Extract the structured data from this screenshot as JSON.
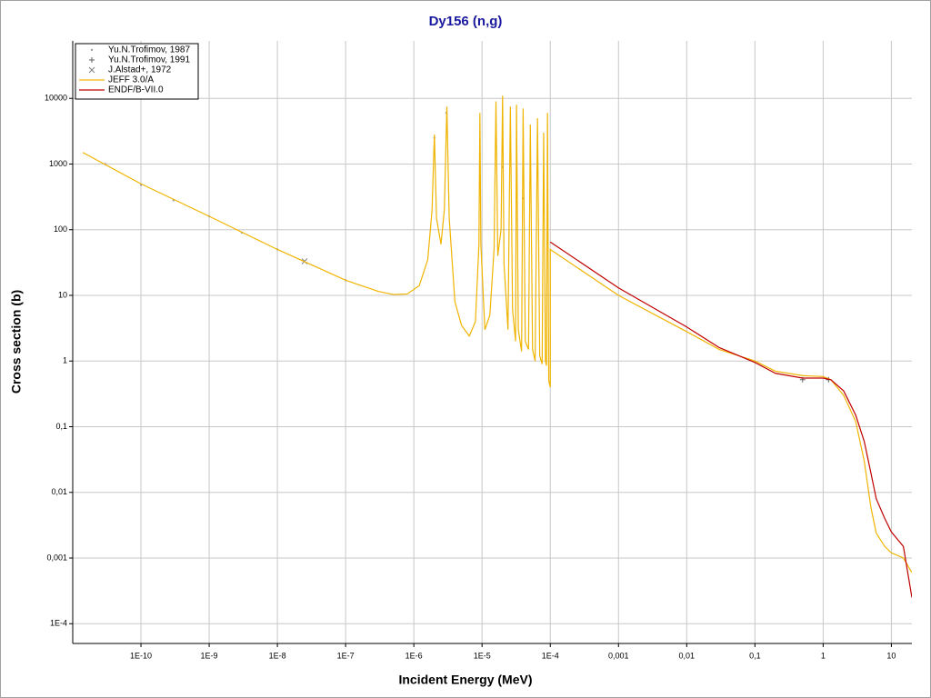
{
  "chart_data": {
    "type": "line",
    "title": "Dy156 (n,g)",
    "x_label": "Incident Energy (MeV)",
    "y_label": "Cross section (b)",
    "x_log": true,
    "y_log": true,
    "grid": true,
    "legend": "top-left",
    "xlim": [
      1e-11,
      20
    ],
    "ylim": [
      5e-05,
      75000
    ],
    "xticks": [
      {
        "value": 1e-10,
        "label": "1E-10"
      },
      {
        "value": 1e-09,
        "label": "1E-9"
      },
      {
        "value": 1e-08,
        "label": "1E-8"
      },
      {
        "value": 1e-07,
        "label": "1E-7"
      },
      {
        "value": 1e-06,
        "label": "1E-6"
      },
      {
        "value": 1e-05,
        "label": "1E-5"
      },
      {
        "value": 0.0001,
        "label": "1E-4"
      },
      {
        "value": 0.001,
        "label": "0,001"
      },
      {
        "value": 0.01,
        "label": "0,01"
      },
      {
        "value": 0.1,
        "label": "0,1"
      },
      1,
      10
    ],
    "yticks": [
      {
        "value": 0.0001,
        "label": "1E-4"
      },
      {
        "value": 0.001,
        "label": "0,001"
      },
      {
        "value": 0.01,
        "label": "0,01"
      },
      {
        "value": 0.1,
        "label": "0,1"
      },
      1,
      10,
      100,
      1000,
      10000
    ],
    "series": [
      {
        "name": "Yu.N.Trofimov, 1987",
        "color": "#a0a0a0",
        "marker": "dot",
        "x": [
          3e-11,
          1e-10,
          3e-10,
          1e-09,
          3e-09,
          1e-08,
          1e-07,
          2e-06,
          3e-06,
          2e-05,
          4e-05
        ],
        "values": [
          1000,
          480,
          280,
          160,
          90,
          50,
          17,
          2500,
          6000,
          900,
          300
        ]
      },
      {
        "name": "Yu.N.Trofimov, 1991",
        "color": "#606060",
        "marker": "plus",
        "x": [
          0.5,
          1.2
        ],
        "values": [
          0.52,
          0.52
        ]
      },
      {
        "name": "J.Alstad+, 1972",
        "color": "#808080",
        "marker": "cross",
        "x": [
          2.5e-08
        ],
        "values": [
          33
        ]
      },
      {
        "name": "JEFF 3.0/A",
        "color": "#f0b400",
        "marker": "line",
        "x": [
          1.4e-11,
          1e-10,
          1e-09,
          1e-08,
          1e-07,
          3e-07,
          5e-07,
          8e-07,
          1.2e-06,
          1.6e-06,
          1.85e-06,
          2e-06,
          2.15e-06,
          2.5e-06,
          2.8e-06,
          3.05e-06,
          3.3e-06,
          4e-06,
          5e-06,
          6.5e-06,
          8e-06,
          9e-06,
          9.3e-06,
          9.6e-06,
          1.1e-05,
          1.3e-05,
          1.5e-05,
          1.6e-05,
          1.7e-05,
          1.9e-05,
          2e-05,
          2.1e-05,
          2.4e-05,
          2.6e-05,
          2.8e-05,
          3.1e-05,
          3.2e-05,
          3.4e-05,
          3.8e-05,
          4e-05,
          4.3e-05,
          4.8e-05,
          5.1e-05,
          5.5e-05,
          6e-05,
          6.5e-05,
          7e-05,
          7.6e-05,
          8e-05,
          8.5e-05,
          8.8e-05,
          9.1e-05,
          9.5e-05,
          0.0001,
          0.0001,
          0.001,
          0.01,
          0.03,
          0.1,
          0.2,
          0.5,
          1,
          1.3,
          2,
          3,
          4,
          5,
          6,
          8,
          10,
          15,
          20
        ],
        "values": [
          1500,
          500,
          160,
          50,
          17,
          11.5,
          10.3,
          10.5,
          14,
          35,
          200,
          2800,
          150,
          60,
          200,
          7500,
          150,
          8,
          3.5,
          2.4,
          4,
          60,
          6000,
          60,
          3,
          5,
          50,
          9000,
          40,
          100,
          11000,
          30,
          3,
          7500,
          6,
          2,
          8000,
          3,
          1.4,
          7000,
          2,
          1.5,
          4000,
          1.5,
          1,
          5000,
          1.2,
          0.9,
          3000,
          1,
          0.85,
          6000,
          0.5,
          0.4,
          50,
          10,
          2.8,
          1.5,
          1,
          0.7,
          0.6,
          0.58,
          0.52,
          0.3,
          0.12,
          0.03,
          0.006,
          0.0024,
          0.0015,
          0.0012,
          0.001,
          0.0006
        ]
      },
      {
        "name": "ENDF/B-VII.0",
        "color": "#c00000",
        "marker": "line",
        "x": [
          0.0001,
          0.001,
          0.01,
          0.03,
          0.1,
          0.2,
          0.5,
          1,
          1.3,
          2,
          3,
          4,
          5,
          6,
          8,
          10,
          15,
          20
        ],
        "values": [
          65,
          13,
          3.3,
          1.6,
          0.95,
          0.65,
          0.55,
          0.55,
          0.52,
          0.35,
          0.15,
          0.06,
          0.02,
          0.008,
          0.004,
          0.0025,
          0.0015,
          0.00025
        ]
      }
    ]
  }
}
